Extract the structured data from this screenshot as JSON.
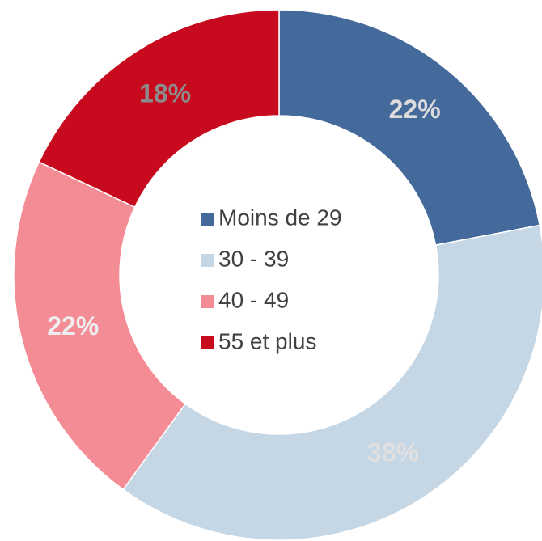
{
  "chart_data": {
    "type": "donut",
    "categories": [
      "Moins de 29",
      "30 - 39",
      "40 - 49",
      "55 et plus"
    ],
    "values": [
      22,
      38,
      22,
      18
    ],
    "value_labels": [
      "22%",
      "38%",
      "22%",
      "18%"
    ],
    "colors": [
      "#44699b",
      "#c5d6e5",
      "#f48c96",
      "#c80a1e"
    ],
    "legend": "center"
  }
}
